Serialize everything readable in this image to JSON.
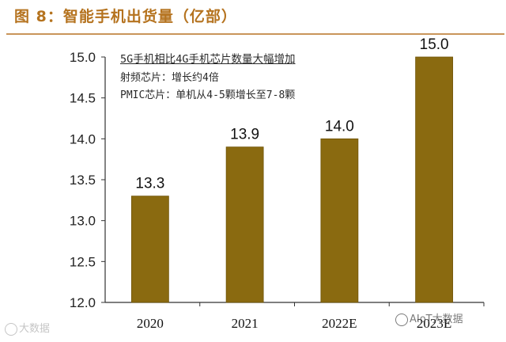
{
  "header": {
    "title": "图 8：智能手机出货量（亿部）"
  },
  "annotation": {
    "title": "5G手机相比4G手机芯片数量大幅增加",
    "lines": [
      "射频芯片：增长约4倍",
      "PMIC芯片：单机从4-5颗增长至7-8颗"
    ]
  },
  "watermarks": {
    "left": "大数据",
    "right": "AIoT大数据"
  },
  "colors": {
    "bar": "#8a6a10",
    "bar_edge": "#6f5408",
    "title": "#b5731f"
  },
  "chart_data": {
    "type": "bar",
    "categories": [
      "2020",
      "2021",
      "2022E",
      "2023E"
    ],
    "values": [
      13.3,
      13.9,
      14.0,
      15.0
    ],
    "data_labels": [
      "13.3",
      "13.9",
      "14.0",
      "15.0"
    ],
    "ylim": [
      12.0,
      15.0
    ],
    "yticks": [
      "12.0",
      "12.5",
      "13.0",
      "13.5",
      "14.0",
      "14.5",
      "15.0"
    ],
    "xlabel": "",
    "ylabel": "",
    "grid": false
  }
}
